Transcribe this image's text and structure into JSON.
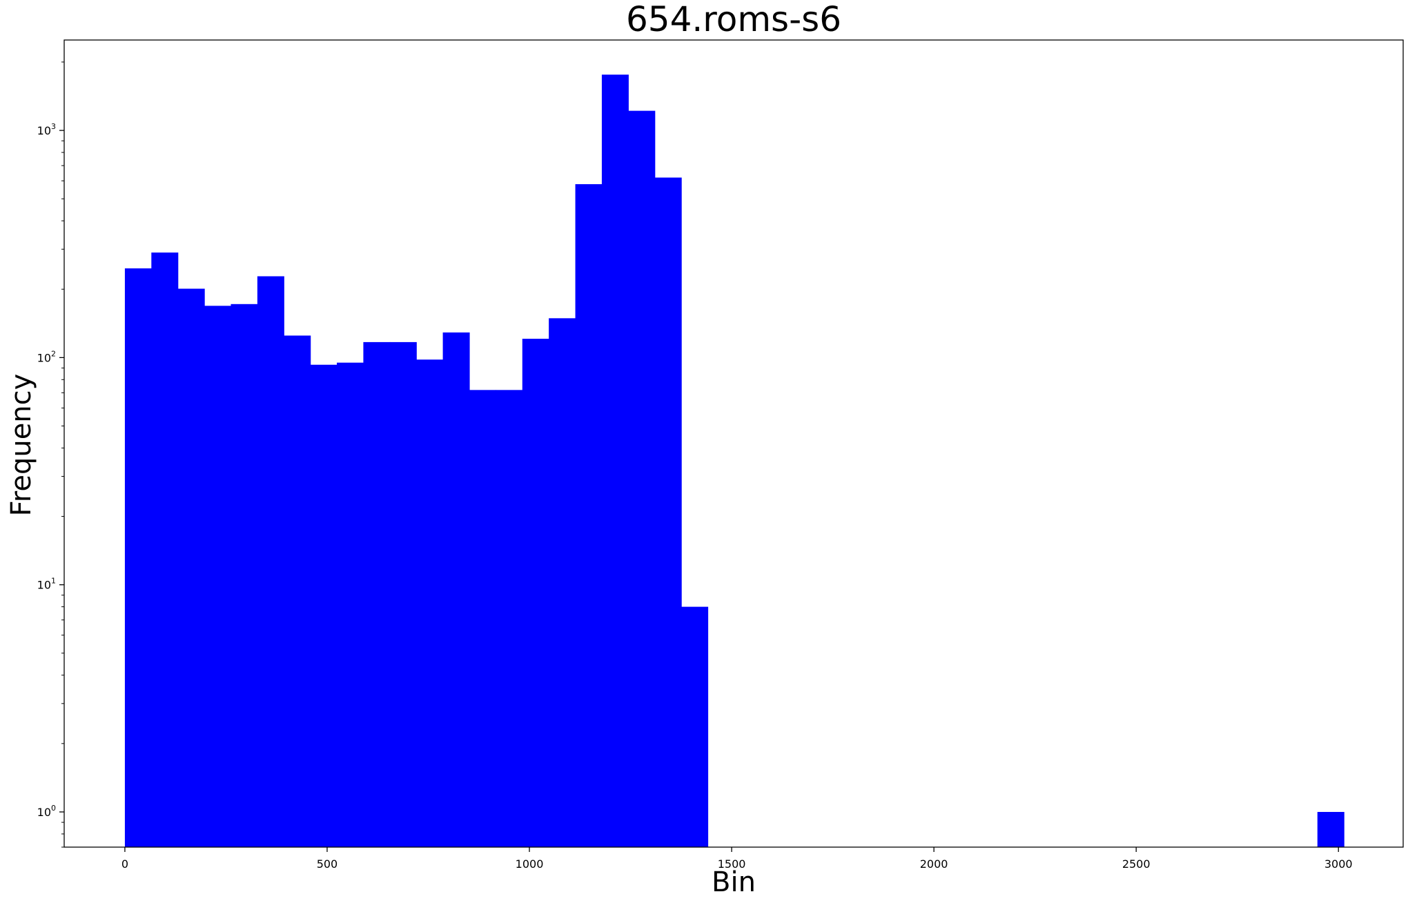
{
  "chart_data": {
    "type": "bar",
    "title": "654.roms-s6",
    "xlabel": "Bin",
    "ylabel": "Frequency",
    "xlim": [
      -150,
      3160
    ],
    "ylim": [
      0.7,
      2500
    ],
    "yscale": "log",
    "bar_color": "#0000ff",
    "bin_width": 65.5,
    "bins": [
      {
        "x": 0,
        "count": 247
      },
      {
        "x": 65.5,
        "count": 290
      },
      {
        "x": 131,
        "count": 201
      },
      {
        "x": 196.5,
        "count": 169
      },
      {
        "x": 262,
        "count": 172
      },
      {
        "x": 327.5,
        "count": 228
      },
      {
        "x": 393,
        "count": 125
      },
      {
        "x": 458.5,
        "count": 93
      },
      {
        "x": 524,
        "count": 95
      },
      {
        "x": 589.5,
        "count": 117
      },
      {
        "x": 655,
        "count": 117
      },
      {
        "x": 720.5,
        "count": 98
      },
      {
        "x": 786,
        "count": 129
      },
      {
        "x": 851.5,
        "count": 72
      },
      {
        "x": 917,
        "count": 72
      },
      {
        "x": 982.5,
        "count": 121
      },
      {
        "x": 1048,
        "count": 149
      },
      {
        "x": 1113.5,
        "count": 580
      },
      {
        "x": 1179,
        "count": 1760
      },
      {
        "x": 1244.5,
        "count": 1220
      },
      {
        "x": 1310,
        "count": 620
      },
      {
        "x": 1375.5,
        "count": 8
      },
      {
        "x": 2948,
        "count": 1
      }
    ],
    "x_ticks": [
      0,
      500,
      1000,
      1500,
      2000,
      2500,
      3000
    ],
    "x_tick_labels": [
      "0",
      "500",
      "1000",
      "1500",
      "2000",
      "2500",
      "3000"
    ],
    "y_ticks": [
      1,
      10,
      100,
      1000
    ],
    "y_tick_labels": [
      {
        "base": "10",
        "exp": "0"
      },
      {
        "base": "10",
        "exp": "1"
      },
      {
        "base": "10",
        "exp": "2"
      },
      {
        "base": "10",
        "exp": "3"
      }
    ],
    "grid": false,
    "legend": "none"
  }
}
